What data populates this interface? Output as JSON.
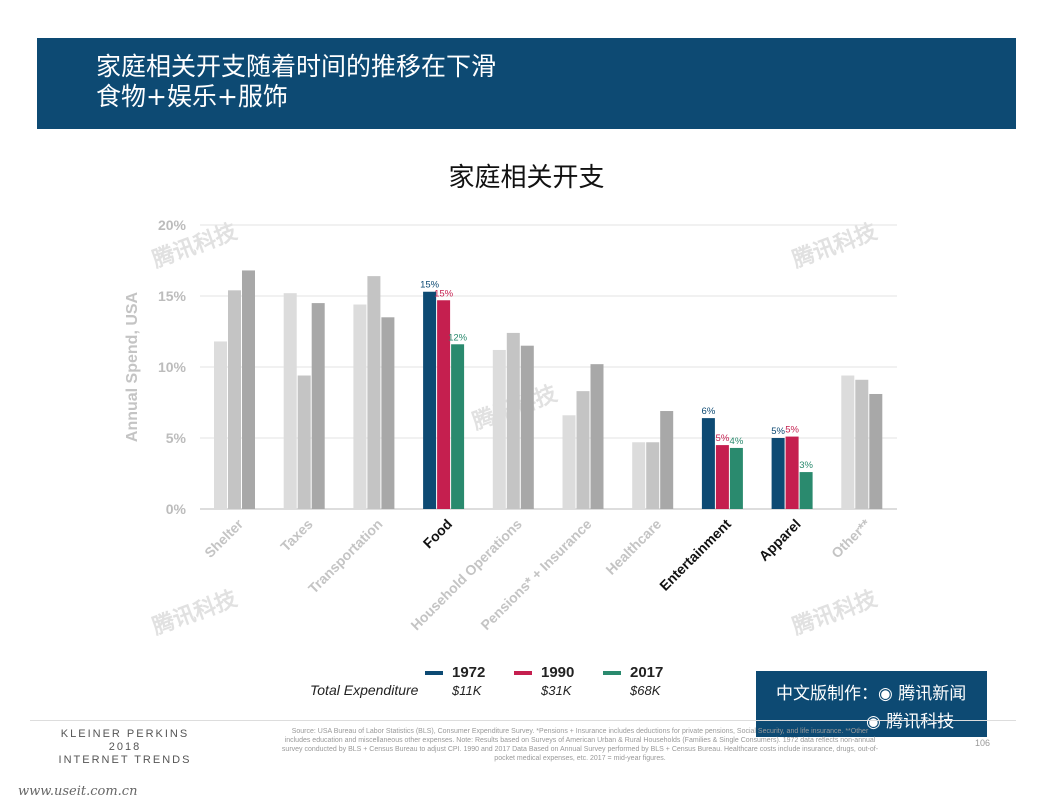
{
  "header": {
    "title_line1": "家庭相关开支随着时间的推移在下滑",
    "title_line2": "食物+娱乐+服饰",
    "background_color": "#0d4a73"
  },
  "chart_data": {
    "type": "bar",
    "title": "家庭相关开支",
    "ylabel": "Annual Spend, USA",
    "ylim": [
      0,
      20
    ],
    "yticks": [
      "0%",
      "5%",
      "10%",
      "15%",
      "20%"
    ],
    "categories": [
      "Shelter",
      "Taxes",
      "Transportation",
      "Food",
      "Household Operations",
      "Pensions* + Insurance",
      "Healthcare",
      "Entertainment",
      "Apparel",
      "Other**"
    ],
    "highlighted_categories": [
      "Food",
      "Entertainment",
      "Apparel"
    ],
    "series": [
      {
        "name": "1972",
        "values": [
          11.8,
          15.2,
          14.4,
          15.3,
          11.2,
          6.6,
          4.7,
          6.4,
          5.0,
          9.4
        ],
        "highlight_color": "#0d4a73",
        "muted_color": "#dcdcdc"
      },
      {
        "name": "1990",
        "values": [
          15.4,
          9.4,
          16.4,
          14.7,
          12.4,
          8.3,
          4.7,
          4.5,
          5.1,
          9.1
        ],
        "highlight_color": "#c51f4f",
        "muted_color": "#c4c4c4"
      },
      {
        "name": "2017",
        "values": [
          16.8,
          14.5,
          13.5,
          11.6,
          11.5,
          10.2,
          6.9,
          4.3,
          2.6,
          8.1
        ],
        "highlight_color": "#2a8a6e",
        "muted_color": "#a8a8a8"
      }
    ],
    "data_labels": {
      "Food": [
        "15%",
        "15%",
        "12%"
      ],
      "Entertainment": [
        "6%",
        "5%",
        "4%"
      ],
      "Apparel": [
        "5%",
        "5%",
        "3%"
      ]
    },
    "legend": {
      "placement": "bottom",
      "row_label": "Total Expenditure",
      "items": [
        {
          "year": "1972",
          "total": "$11K",
          "color": "#0d4a73"
        },
        {
          "year": "1990",
          "total": "$31K",
          "color": "#c51f4f"
        },
        {
          "year": "2017",
          "total": "$68K",
          "color": "#2a8a6e"
        }
      ]
    },
    "grid": true
  },
  "footer": {
    "brand_lines": [
      "KLEINER PERKINS",
      "2018",
      "INTERNET TRENDS"
    ],
    "source": "Source: USA Bureau of Labor Statistics (BLS), Consumer Expenditure Survey. *Pensions + Insurance includes deductions for private pensions, Social Security, and life insurance. **Other includes education and miscellaneous other expenses. Note: Results based on Surveys of American Urban & Rural Households (Families & Single Consumers). 1972 data reflects non-annual survey conducted by BLS + Census Bureau to adjust CPI. 1990 and 2017 Data Based on Annual Survey performed by BLS + Census Bureau. Healthcare costs include insurance, drugs, out-of-pocket medical expenses, etc. 2017 = mid-year figures.",
    "page_number": "106",
    "url": "www.useit.com.cn"
  },
  "badge": {
    "line1": "中文版制作：◉ 腾讯新闻",
    "line2": "◉ 腾讯科技"
  },
  "watermark": "腾讯科技"
}
